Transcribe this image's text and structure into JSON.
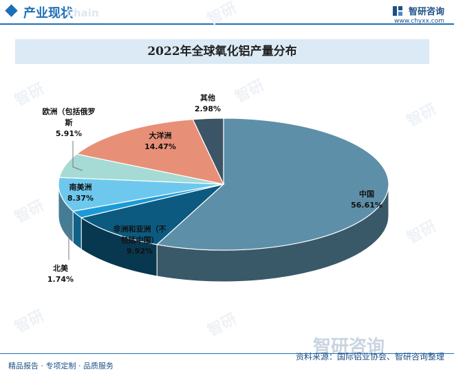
{
  "header": {
    "section_title": "产业现状",
    "ghost_text": "Chain",
    "brand_name": "智研咨询",
    "brand_url": "www.chyxx.com"
  },
  "watermark_text": "智研",
  "chart_data": {
    "type": "pie",
    "title": "2022年全球氧化铝产量分布",
    "unit": "%",
    "slices": [
      {
        "name": "中国",
        "value": 56.61,
        "value_label": "56.61%",
        "color": "#5e8fa8"
      },
      {
        "name": "非洲和亚洲（不包括中国）",
        "value": 9.92,
        "value_label": "9.92%",
        "color": "#0d5a80"
      },
      {
        "name": "北美",
        "value": 1.74,
        "value_label": "1.74%",
        "color": "#1b9bd6"
      },
      {
        "name": "南美洲",
        "value": 8.37,
        "value_label": "8.37%",
        "color": "#6ec8ee"
      },
      {
        "name": "欧洲（包括俄罗斯",
        "value": 5.91,
        "value_label": "5.91%",
        "color": "#a6dad5"
      },
      {
        "name": "大洋洲",
        "value": 14.47,
        "value_label": "14.47%",
        "color": "#e89077"
      },
      {
        "name": "其他",
        "value": 2.98,
        "value_label": "2.98%",
        "color": "#3b5566"
      }
    ]
  },
  "footer": {
    "tagline": "精品报告 · 专项定制 · 品质服务",
    "source": "资料来源：国际铝业协会、智研咨询整理",
    "logo_text": "智研咨询"
  }
}
